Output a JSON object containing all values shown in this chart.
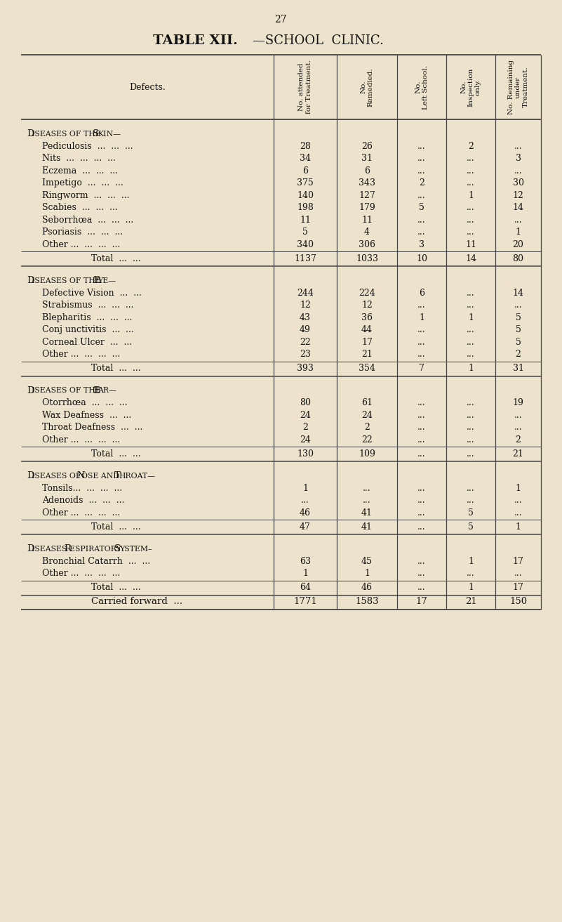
{
  "page_number": "27",
  "title_bold": "TABLE XII.",
  "title_normal": "—SCHOOL  CLINIC.",
  "bg_color": "#ede3cc",
  "text_color": "#111111",
  "col_headers": [
    "No. attended\nfor Treatment.",
    "No.\nRemedied.",
    "No.\nLeft School.",
    "No.\nInspection\nonly.",
    "No. Remaining\nunder\nTreatment."
  ],
  "defects_label": "Defects.",
  "sections": [
    {
      "title": [
        "D",
        "ISEASES OF THE ",
        "S",
        "KIN—"
      ],
      "rows": [
        [
          "Pediculosis",
          "...",
          "...",
          "...",
          "28",
          "26",
          "...",
          "2",
          "..."
        ],
        [
          "Nits",
          "...",
          "...",
          "...",
          "...",
          "34",
          "31",
          "...",
          "...",
          "3"
        ],
        [
          "Eczema",
          "...",
          "...",
          "...",
          "6",
          "6",
          "...",
          "...",
          "..."
        ],
        [
          "Impetigo",
          "...",
          "...",
          "...",
          "375",
          "343",
          "2",
          "...",
          "30"
        ],
        [
          "Ringworm",
          "...",
          "...",
          "...",
          "140",
          "127",
          "...",
          "1",
          "12"
        ],
        [
          "Scabies",
          "...",
          "...",
          "...",
          "198",
          "179",
          "5",
          "...",
          "14"
        ],
        [
          "Seborrhœa",
          "...",
          "...",
          "...",
          "11",
          "11",
          "...",
          "...",
          "..."
        ],
        [
          "Psoriasis",
          "...",
          "...",
          "...",
          "5",
          "4",
          "...",
          "...",
          "1"
        ],
        [
          "Other ...",
          "...",
          "...",
          "...",
          "340",
          "306",
          "3",
          "11",
          "20"
        ]
      ],
      "row_labels": [
        "Pediculosis  ...  ...  ...",
        "Nits  ...  ...  ...  ...",
        "Eczema  ...  ...  ...",
        "Impetigo  ...  ...  ...",
        "Ringworm  ...  ...  ...",
        "Scabies  ...  ...  ...",
        "Seborrhœa  ...  ...  ...",
        "Psoriasis  ...  ...  ...",
        "Other ...  ...  ...  ..."
      ],
      "row_data": [
        [
          "28",
          "26",
          "...",
          "2",
          "..."
        ],
        [
          "34",
          "31",
          "...",
          "...",
          "3"
        ],
        [
          "6",
          "6",
          "...",
          "...",
          "..."
        ],
        [
          "375",
          "343",
          "2",
          "...",
          "30"
        ],
        [
          "140",
          "127",
          "...",
          "1",
          "12"
        ],
        [
          "198",
          "179",
          "5",
          "...",
          "14"
        ],
        [
          "11",
          "11",
          "...",
          "...",
          "..."
        ],
        [
          "5",
          "4",
          "...",
          "...",
          "1"
        ],
        [
          "340",
          "306",
          "3",
          "11",
          "20"
        ]
      ],
      "total_label": "Total  ...  ...",
      "total_data": [
        "1137",
        "1033",
        "10",
        "14",
        "80"
      ]
    },
    {
      "title": [
        "D",
        "ISEASES OF THE ",
        "E",
        "YE—"
      ],
      "row_labels": [
        "Defective Vision  ...  ...",
        "Strabismus  ...  ...  ...",
        "Blepharitis  ...  ...  ...",
        "Conj unctivitis  ...  ...",
        "Corneal Ulcer  ...  ...",
        "Other ...  ...  ...  ..."
      ],
      "row_data": [
        [
          "244",
          "224",
          "6",
          "...",
          "14"
        ],
        [
          "12",
          "12",
          "...",
          "...",
          "..."
        ],
        [
          "43",
          "36",
          "1",
          "1",
          "5"
        ],
        [
          "49",
          "44",
          "...",
          "...",
          "5"
        ],
        [
          "22",
          "17",
          "...",
          "...",
          "5"
        ],
        [
          "23",
          "21",
          "...",
          "...",
          "2"
        ]
      ],
      "total_label": "Total  ...  ...",
      "total_data": [
        "393",
        "354",
        "7",
        "1",
        "31"
      ]
    },
    {
      "title": [
        "D",
        "ISEASES OF THE ",
        "E",
        "AR—"
      ],
      "row_labels": [
        "Otorrhœa  ...  ...  ...",
        "Wax Deafness  ...  ...",
        "Throat Deafness  ...  ...",
        "Other ...  ...  ...  ..."
      ],
      "row_data": [
        [
          "80",
          "61",
          "...",
          "...",
          "19"
        ],
        [
          "24",
          "24",
          "...",
          "...",
          "..."
        ],
        [
          "2",
          "2",
          "...",
          "...",
          "..."
        ],
        [
          "24",
          "22",
          "...",
          "...",
          "2"
        ]
      ],
      "total_label": "Total  ...  ...",
      "total_data": [
        "130",
        "109",
        "...",
        "...",
        "21"
      ]
    },
    {
      "title": [
        "D",
        "ISEASES OF ",
        "N",
        "OSE AND ",
        "T",
        "HROAT—"
      ],
      "row_labels": [
        "Tonsils...  ...  ...  ...",
        "Adenoids  ...  ...  ...",
        "Other ...  ...  ...  ..."
      ],
      "row_data": [
        [
          "1",
          "...",
          "...",
          "...",
          "1"
        ],
        [
          "...",
          "...",
          "...",
          "...",
          "..."
        ],
        [
          "46",
          "41",
          "...",
          "5",
          "..."
        ]
      ],
      "total_label": "Total  ...  ...",
      "total_data": [
        "47",
        "41",
        "...",
        "5",
        "1"
      ]
    },
    {
      "title": [
        "D",
        "ISEASES ",
        "R",
        "ESPIRATORY ",
        "S",
        "YSTEM–"
      ],
      "row_labels": [
        "Bronchial Catarrh  ...  ...",
        "Other ...  ...  ...  ..."
      ],
      "row_data": [
        [
          "63",
          "45",
          "...",
          "1",
          "17"
        ],
        [
          "1",
          "1",
          "...",
          "...",
          "..."
        ]
      ],
      "total_label": "Total  ...  ...",
      "total_data": [
        "64",
        "46",
        "...",
        "1",
        "17"
      ]
    }
  ],
  "carried_forward_label": "Carried forward  ...",
  "carried_forward_data": [
    "1771",
    "1583",
    "17",
    "21",
    "150"
  ]
}
